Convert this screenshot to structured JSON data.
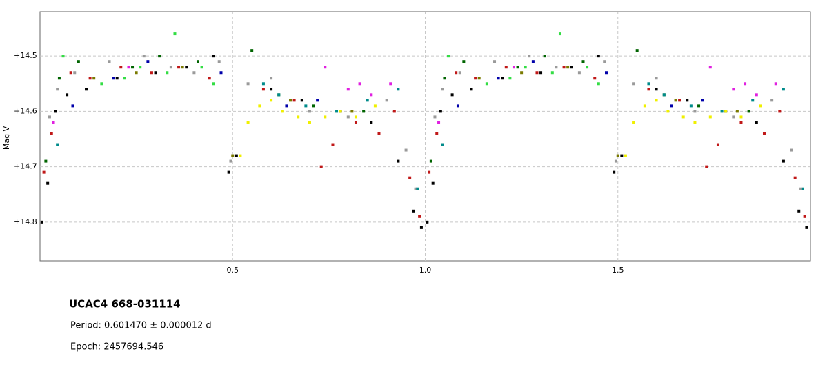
{
  "chart_data": {
    "type": "scatter",
    "y_label": "Mag V",
    "annotations": [
      "UCAC4 668-031114",
      "Period:  0.601470 ± 0.000012 d",
      "Epoch: 2457694.546"
    ],
    "xlim": [
      0,
      2
    ],
    "ylim": [
      14.42,
      14.87
    ],
    "y_inverted": true,
    "grid": true,
    "xticks": [
      0.5,
      {
        "value": 1.0,
        "label": "1.0"
      },
      1.5
    ],
    "yticks": [
      {
        "value": 14.5,
        "label": "+14.5"
      },
      {
        "value": 14.6,
        "label": "+14.6"
      },
      {
        "value": 14.7,
        "label": "+14.7"
      },
      {
        "value": 14.8,
        "label": "+14.8"
      }
    ],
    "series": [
      {
        "color": "#000000",
        "x": [
          0.005,
          0.02,
          0.04,
          0.07,
          0.12,
          0.2,
          0.3,
          0.38,
          0.45,
          0.49,
          0.51,
          0.6,
          0.68,
          0.78,
          0.86,
          0.93,
          0.97,
          0.99,
          1.005,
          1.02,
          1.04,
          1.07,
          1.12,
          1.2,
          1.3,
          1.38,
          1.45,
          1.49,
          1.51,
          1.6,
          1.68,
          1.78,
          1.86,
          1.93,
          1.97,
          1.99
        ],
        "values": [
          14.8,
          14.73,
          14.6,
          14.57,
          14.56,
          14.54,
          14.53,
          14.52,
          14.5,
          14.71,
          14.68,
          14.56,
          14.58,
          14.6,
          14.62,
          14.69,
          14.78,
          14.81,
          14.8,
          14.73,
          14.6,
          14.57,
          14.56,
          14.54,
          14.53,
          14.52,
          14.5,
          14.71,
          14.68,
          14.56,
          14.58,
          14.6,
          14.62,
          14.69,
          14.78,
          14.81
        ]
      },
      {
        "color": "#c01818",
        "x": [
          0.01,
          0.03,
          0.08,
          0.13,
          0.21,
          0.29,
          0.36,
          0.44,
          0.58,
          0.66,
          0.73,
          0.76,
          0.82,
          0.88,
          0.92,
          0.96,
          0.985,
          1.01,
          1.03,
          1.08,
          1.13,
          1.21,
          1.29,
          1.36,
          1.44,
          1.58,
          1.66,
          1.73,
          1.76,
          1.82,
          1.88,
          1.92,
          1.96,
          1.985
        ],
        "values": [
          14.71,
          14.64,
          14.53,
          14.54,
          14.52,
          14.53,
          14.52,
          14.54,
          14.56,
          14.58,
          14.7,
          14.66,
          14.62,
          14.64,
          14.6,
          14.72,
          14.79,
          14.71,
          14.64,
          14.53,
          14.54,
          14.52,
          14.53,
          14.52,
          14.54,
          14.56,
          14.58,
          14.7,
          14.66,
          14.62,
          14.64,
          14.6,
          14.72,
          14.79
        ]
      },
      {
        "color": "#33dd44",
        "x": [
          0.06,
          0.16,
          0.22,
          0.26,
          0.33,
          0.35,
          0.42,
          0.45,
          1.06,
          1.16,
          1.22,
          1.26,
          1.33,
          1.35,
          1.42,
          1.45
        ],
        "values": [
          14.5,
          14.55,
          14.54,
          14.52,
          14.53,
          14.46,
          14.52,
          14.55,
          14.5,
          14.55,
          14.54,
          14.52,
          14.53,
          14.46,
          14.52,
          14.55
        ]
      },
      {
        "color": "#006400",
        "x": [
          0.015,
          0.05,
          0.1,
          0.24,
          0.31,
          0.41,
          0.55,
          0.62,
          0.71,
          0.84,
          1.015,
          1.05,
          1.1,
          1.24,
          1.31,
          1.41,
          1.55,
          1.62,
          1.71,
          1.84
        ],
        "values": [
          14.69,
          14.54,
          14.51,
          14.52,
          14.5,
          14.51,
          14.49,
          14.57,
          14.59,
          14.6,
          14.69,
          14.54,
          14.51,
          14.52,
          14.5,
          14.51,
          14.49,
          14.57,
          14.59,
          14.6
        ]
      },
      {
        "color": "#9a9a9a",
        "x": [
          0.025,
          0.045,
          0.09,
          0.18,
          0.27,
          0.34,
          0.4,
          0.465,
          0.495,
          0.54,
          0.6,
          0.7,
          0.8,
          0.9,
          0.95,
          0.975,
          1.025,
          1.045,
          1.09,
          1.18,
          1.27,
          1.34,
          1.4,
          1.465,
          1.495,
          1.54,
          1.6,
          1.7,
          1.8,
          1.9,
          1.95,
          1.975
        ],
        "values": [
          14.61,
          14.56,
          14.53,
          14.51,
          14.5,
          14.52,
          14.53,
          14.51,
          14.69,
          14.55,
          14.54,
          14.6,
          14.61,
          14.58,
          14.67,
          14.74,
          14.61,
          14.56,
          14.53,
          14.51,
          14.5,
          14.52,
          14.53,
          14.51,
          14.69,
          14.55,
          14.54,
          14.6,
          14.61,
          14.58,
          14.67,
          14.74
        ]
      },
      {
        "color": "#f0f000",
        "x": [
          0.52,
          0.54,
          0.57,
          0.6,
          0.63,
          0.67,
          0.7,
          0.74,
          0.78,
          0.82,
          0.87,
          1.52,
          1.54,
          1.57,
          1.6,
          1.63,
          1.67,
          1.7,
          1.74,
          1.78,
          1.82,
          1.87
        ],
        "values": [
          14.68,
          14.62,
          14.59,
          14.58,
          14.6,
          14.61,
          14.62,
          14.61,
          14.6,
          14.61,
          14.59,
          14.68,
          14.62,
          14.59,
          14.58,
          14.6,
          14.61,
          14.62,
          14.61,
          14.6,
          14.61,
          14.59
        ]
      },
      {
        "color": "#e020e0",
        "x": [
          0.035,
          0.23,
          0.74,
          0.8,
          0.83,
          0.86,
          0.91,
          1.035,
          1.23,
          1.74,
          1.8,
          1.83,
          1.86,
          1.91
        ],
        "values": [
          14.62,
          14.52,
          14.52,
          14.56,
          14.55,
          14.57,
          14.55,
          14.62,
          14.52,
          14.52,
          14.56,
          14.55,
          14.57,
          14.55
        ]
      },
      {
        "color": "#008b8b",
        "x": [
          0.045,
          0.58,
          0.62,
          0.69,
          0.77,
          0.85,
          0.93,
          0.98,
          1.045,
          1.58,
          1.62,
          1.69,
          1.77,
          1.85,
          1.93,
          1.98
        ],
        "values": [
          14.66,
          14.55,
          14.57,
          14.59,
          14.6,
          14.58,
          14.56,
          14.74,
          14.66,
          14.55,
          14.57,
          14.59,
          14.6,
          14.58,
          14.56,
          14.74
        ]
      },
      {
        "color": "#0000aa",
        "x": [
          0.085,
          0.19,
          0.28,
          0.47,
          0.64,
          0.72,
          1.085,
          1.19,
          1.28,
          1.47,
          1.64,
          1.72
        ],
        "values": [
          14.59,
          14.54,
          14.51,
          14.53,
          14.59,
          14.58,
          14.59,
          14.54,
          14.51,
          14.53,
          14.59,
          14.58
        ]
      },
      {
        "color": "#7a7a00",
        "x": [
          0.14,
          0.25,
          0.37,
          0.5,
          0.65,
          0.81,
          1.14,
          1.25,
          1.37,
          1.5,
          1.65,
          1.81
        ],
        "values": [
          14.54,
          14.53,
          14.52,
          14.68,
          14.58,
          14.6,
          14.54,
          14.53,
          14.52,
          14.68,
          14.58,
          14.6
        ]
      }
    ]
  }
}
